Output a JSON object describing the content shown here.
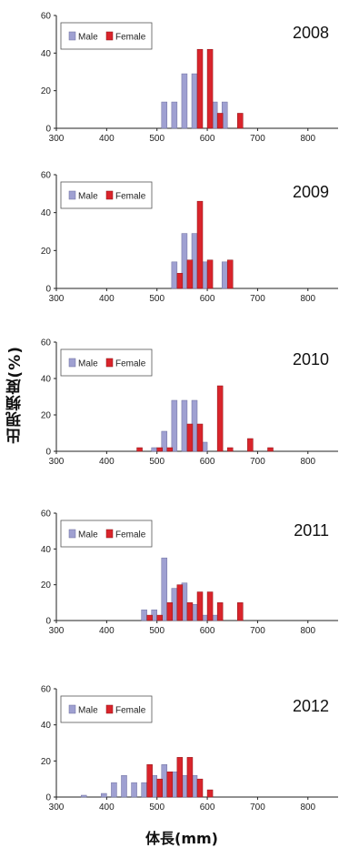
{
  "figure": {
    "ylabel": "出現頻度(%)",
    "xlabel": "体長(mm)"
  },
  "colors": {
    "male": "#9fa0d1",
    "female": "#d9242b",
    "male_stroke": "#6d6e9e",
    "female_stroke": "#8e1418"
  },
  "chart_data": [
    {
      "type": "bar",
      "title": "2008",
      "xlim": [
        300,
        860
      ],
      "ylim": [
        0,
        60
      ],
      "xticks": [
        300,
        400,
        500,
        600,
        700,
        800
      ],
      "yticks": [
        0,
        20,
        40,
        60
      ],
      "legend": "top-left",
      "series": [
        {
          "name": "Male",
          "x": [
            520,
            540,
            560,
            580,
            620,
            640
          ],
          "values": [
            14,
            14,
            29,
            29,
            14,
            14
          ]
        },
        {
          "name": "Female",
          "x": [
            580,
            600,
            620,
            660
          ],
          "values": [
            42,
            42,
            8,
            8
          ]
        }
      ]
    },
    {
      "type": "bar",
      "title": "2009",
      "xlim": [
        300,
        860
      ],
      "ylim": [
        0,
        60
      ],
      "xticks": [
        300,
        400,
        500,
        600,
        700,
        800
      ],
      "yticks": [
        0,
        20,
        40,
        60
      ],
      "legend": "top-left",
      "series": [
        {
          "name": "Male",
          "x": [
            540,
            560,
            580,
            600,
            640
          ],
          "values": [
            14,
            29,
            29,
            14,
            14
          ]
        },
        {
          "name": "Female",
          "x": [
            540,
            560,
            580,
            600,
            640
          ],
          "values": [
            8,
            15,
            46,
            15,
            15
          ]
        }
      ]
    },
    {
      "type": "bar",
      "title": "2010",
      "xlim": [
        300,
        860
      ],
      "ylim": [
        0,
        60
      ],
      "xticks": [
        300,
        400,
        500,
        600,
        700,
        800
      ],
      "yticks": [
        0,
        20,
        40,
        60
      ],
      "legend": "top-left",
      "series": [
        {
          "name": "Male",
          "x": [
            500,
            520,
            540,
            560,
            580,
            600
          ],
          "values": [
            2,
            11,
            28,
            28,
            28,
            5
          ]
        },
        {
          "name": "Female",
          "x": [
            460,
            500,
            520,
            560,
            580,
            620,
            640,
            680,
            720
          ],
          "values": [
            2,
            2,
            2,
            15,
            15,
            36,
            2,
            7,
            2
          ]
        }
      ]
    },
    {
      "type": "bar",
      "title": "2011",
      "xlim": [
        300,
        860
      ],
      "ylim": [
        0,
        60
      ],
      "xticks": [
        300,
        400,
        500,
        600,
        700,
        800
      ],
      "yticks": [
        0,
        20,
        40,
        60
      ],
      "legend": "top-left",
      "series": [
        {
          "name": "Male",
          "x": [
            480,
            500,
            520,
            540,
            560,
            580,
            600,
            620
          ],
          "values": [
            6,
            6,
            35,
            18,
            21,
            9,
            3,
            3
          ]
        },
        {
          "name": "Female",
          "x": [
            480,
            500,
            520,
            540,
            560,
            580,
            600,
            620,
            660
          ],
          "values": [
            3,
            3,
            10,
            20,
            10,
            16,
            16,
            10,
            10
          ]
        }
      ]
    },
    {
      "type": "bar",
      "title": "2012",
      "xlim": [
        300,
        860
      ],
      "ylim": [
        0,
        60
      ],
      "xticks": [
        300,
        400,
        500,
        600,
        700,
        800
      ],
      "yticks": [
        0,
        20,
        40,
        60
      ],
      "legend": "top-left",
      "series": [
        {
          "name": "Male",
          "x": [
            360,
            400,
            420,
            440,
            460,
            480,
            500,
            520,
            540,
            560,
            580
          ],
          "values": [
            1,
            2,
            8,
            12,
            8,
            8,
            12,
            18,
            14,
            12,
            12
          ]
        },
        {
          "name": "Female",
          "x": [
            480,
            500,
            520,
            540,
            560,
            580,
            600
          ],
          "values": [
            18,
            10,
            14,
            22,
            22,
            10,
            4
          ]
        }
      ]
    }
  ]
}
